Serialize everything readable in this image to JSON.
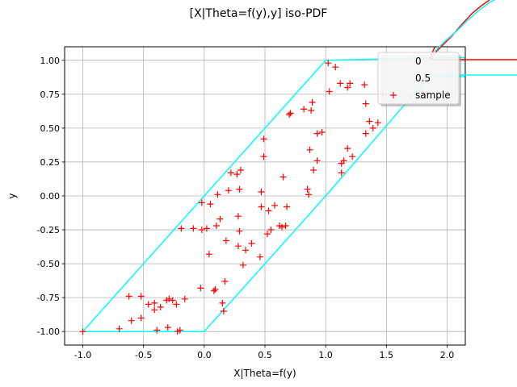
{
  "chart_data": {
    "type": "scatter",
    "title": "[X|Theta=f(y),y] iso-PDF",
    "xlabel": "X|Theta=f(y)",
    "ylabel": "y",
    "xlim": [
      -1.15,
      2.15
    ],
    "ylim": [
      -1.1,
      1.1
    ],
    "xticks": [
      "-1.0",
      "-0.5",
      "0.0",
      "0.5",
      "1.0",
      "1.5",
      "2.0"
    ],
    "yticks": [
      "-1.00",
      "-0.75",
      "-0.50",
      "-0.25",
      "0.00",
      "0.25",
      "0.50",
      "0.75",
      "1.00"
    ],
    "grid": true,
    "legend": {
      "position": "top-right",
      "entries": [
        {
          "label": "0",
          "color": "#ff0000",
          "marker": "line"
        },
        {
          "label": "0.5",
          "color": "#00ffff",
          "marker": "line"
        },
        {
          "label": "sample",
          "color": "#ff0000",
          "marker": "+"
        }
      ]
    },
    "contours": [
      {
        "level": "0",
        "color": "#ff0000",
        "points": [
          [
            1.85,
            1.0
          ],
          [
            1.9,
            1.1
          ],
          [
            1.95,
            1.2
          ],
          [
            2.0,
            1.3
          ],
          [
            2.05,
            1.4
          ],
          [
            2.1,
            1.5
          ],
          [
            2.15,
            1.6
          ]
        ]
      },
      {
        "level": "0.5",
        "color": "#00ffff",
        "points": [
          [
            -1.0,
            -1.0
          ],
          [
            0.0,
            -1.0
          ],
          [
            1.0,
            0.0
          ],
          [
            1.85,
            0.88
          ],
          [
            2.15,
            0.88
          ],
          [
            2.15,
            1.02
          ],
          [
            1.97,
            1.02
          ],
          [
            1.0,
            1.0
          ],
          [
            -1.0,
            -1.0
          ]
        ]
      }
    ],
    "series": [
      {
        "name": "sample",
        "color": "#ff0000",
        "marker": "+",
        "points": [
          [
            -1.0,
            -1.0
          ],
          [
            -0.7,
            -0.98
          ],
          [
            -0.62,
            -0.74
          ],
          [
            -0.6,
            -0.92
          ],
          [
            -0.52,
            -0.9
          ],
          [
            -0.52,
            -0.74
          ],
          [
            -0.46,
            -0.8
          ],
          [
            -0.41,
            -0.79
          ],
          [
            -0.41,
            -0.84
          ],
          [
            -0.39,
            -0.99
          ],
          [
            -0.36,
            -0.82
          ],
          [
            -0.31,
            -0.77
          ],
          [
            -0.3,
            -0.97
          ],
          [
            -0.29,
            -0.76
          ],
          [
            -0.26,
            -0.77
          ],
          [
            -0.23,
            -0.8
          ],
          [
            -0.22,
            -1.0
          ],
          [
            -0.2,
            -0.99
          ],
          [
            -0.19,
            -0.24
          ],
          [
            -0.16,
            -0.76
          ],
          [
            -0.09,
            -0.24
          ],
          [
            -0.03,
            -0.68
          ],
          [
            -0.02,
            -0.25
          ],
          [
            -0.02,
            -0.05
          ],
          [
            0.02,
            -0.24
          ],
          [
            0.04,
            -0.43
          ],
          [
            0.05,
            -0.06
          ],
          [
            0.08,
            -0.7
          ],
          [
            0.09,
            -0.69
          ],
          [
            0.1,
            -0.22
          ],
          [
            0.11,
            0.01
          ],
          [
            0.13,
            -0.17
          ],
          [
            0.15,
            -0.79
          ],
          [
            0.16,
            -0.85
          ],
          [
            0.17,
            -0.63
          ],
          [
            0.18,
            -0.33
          ],
          [
            0.2,
            0.04
          ],
          [
            0.22,
            0.17
          ],
          [
            0.27,
            0.16
          ],
          [
            0.28,
            -0.37
          ],
          [
            0.28,
            -0.15
          ],
          [
            0.29,
            -0.26
          ],
          [
            0.29,
            0.05
          ],
          [
            0.3,
            0.19
          ],
          [
            0.32,
            -0.51
          ],
          [
            0.34,
            -0.4
          ],
          [
            0.39,
            -0.35
          ],
          [
            0.46,
            -0.45
          ],
          [
            0.47,
            0.03
          ],
          [
            0.47,
            -0.08
          ],
          [
            0.49,
            0.42
          ],
          [
            0.49,
            0.29
          ],
          [
            0.52,
            -0.28
          ],
          [
            0.53,
            -0.11
          ],
          [
            0.55,
            -0.25
          ],
          [
            0.58,
            -0.07
          ],
          [
            0.62,
            -0.22
          ],
          [
            0.64,
            -0.23
          ],
          [
            0.65,
            0.14
          ],
          [
            0.67,
            -0.22
          ],
          [
            0.68,
            -0.08
          ],
          [
            0.7,
            0.6
          ],
          [
            0.71,
            0.61
          ],
          [
            0.82,
            0.64
          ],
          [
            0.85,
            0.05
          ],
          [
            0.86,
            0.01
          ],
          [
            0.87,
            0.34
          ],
          [
            0.88,
            0.63
          ],
          [
            0.89,
            0.69
          ],
          [
            0.9,
            0.19
          ],
          [
            0.93,
            0.26
          ],
          [
            0.93,
            0.46
          ],
          [
            0.97,
            0.47
          ],
          [
            1.02,
            0.98
          ],
          [
            1.03,
            0.77
          ],
          [
            1.08,
            0.95
          ],
          [
            1.12,
            0.83
          ],
          [
            1.13,
            0.24
          ],
          [
            1.13,
            0.17
          ],
          [
            1.15,
            0.26
          ],
          [
            1.18,
            0.35
          ],
          [
            1.18,
            0.8
          ],
          [
            1.2,
            0.83
          ],
          [
            1.22,
            0.29
          ],
          [
            1.32,
            0.82
          ],
          [
            1.33,
            0.68
          ],
          [
            1.33,
            0.46
          ],
          [
            1.36,
            0.55
          ],
          [
            1.39,
            0.5
          ],
          [
            1.43,
            0.54
          ],
          [
            1.47,
            0.75
          ]
        ]
      }
    ]
  }
}
